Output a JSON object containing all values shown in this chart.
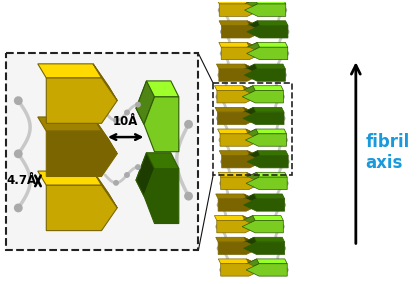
{
  "bg_color": "#ffffff",
  "fibril_axis_text": "fibril\naxis",
  "fibril_axis_color": "#1a9adc",
  "label_10A": "10Å",
  "label_4_7A": "4.7Å",
  "yellow_color": "#c8a800",
  "yellow_dark": "#7a6500",
  "yellow_light": "#e8c830",
  "yellow_top": "#dfc040",
  "green_bright": "#7acc20",
  "green_dark": "#2d5c00",
  "green_light": "#a0e040",
  "green_top": "#90d830",
  "dashed_box_color": "#333333",
  "connector_color": "#111111",
  "backbone_color": "#c8c8c8",
  "backbone_sphere": "#aaaaaa",
  "figure_width": 4.2,
  "figure_height": 2.84,
  "dpi": 100
}
